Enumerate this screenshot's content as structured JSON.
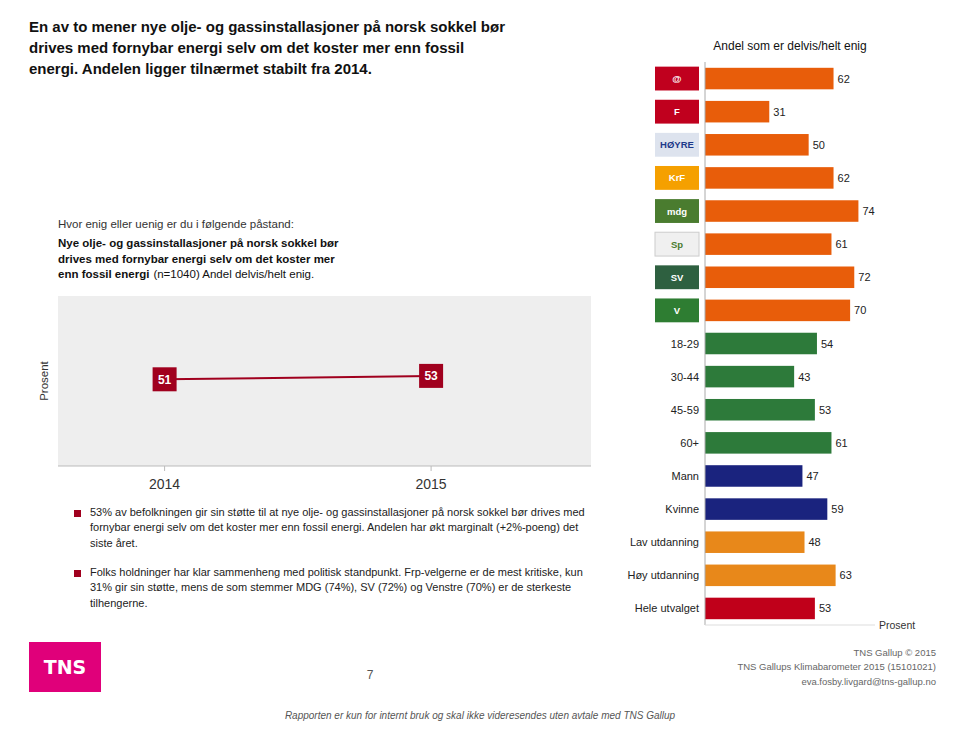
{
  "title": "En av to mener nye olje- og gassinstallasjoner på norsk sokkel bør\ndrives med fornybar energi selv om det koster mer enn fossil\nenergi. Andelen ligger tilnærmet stabilt fra 2014.",
  "notes": [
    "53% av befolkningen gir sin støtte til at nye olje- og gassinstallasjoner på norsk sokkel bør drives med fornybar energi selv om det koster mer enn fossil energi. Andelen har økt marginalt (+2%-poeng) det siste året.",
    "Folks holdninger har klar sammenheng med politisk standpunkt. Frp-velgerne er de mest kritiske, kun 31% gir sin støtte, mens de som stemmer MDG (74%), SV (72%) og Venstre (70%) er de sterkeste tilhengerne."
  ],
  "logo": "TNS",
  "page_number": "7",
  "credit": "TNS Gallup © 2015\nTNS Gallups Klimabarometer 2015 (15101021)\neva.fosby.livgard@tns-gallup.no",
  "footer": "Rapporten er kun for internt bruk og skal ikke videresendes uten avtale med TNS Gallup",
  "chart_data": [
    {
      "type": "line",
      "title": "Hvor enig eller uenig er du i følgende påstand:",
      "subtitle": "Nye olje- og gassinstallasjoner på norsk sokkel bør\ndrives med fornybar energi selv om det koster mer\nenn fossil energi",
      "annotations": [
        "(n=1040) Andel delvis/helt enig."
      ],
      "ylabel": "Prosent",
      "x": [
        2014,
        2015
      ],
      "values": [
        51,
        53
      ],
      "color": "#a0001e",
      "marker": "square",
      "data_labels": true,
      "xlim": [
        2013.6,
        2015.6
      ],
      "xticks": [
        2014,
        2015
      ],
      "ylim": [
        0,
        100
      ],
      "yticks": [],
      "tick_labels": "x",
      "grid": false
    },
    {
      "type": "bar",
      "orientation": "horizontal",
      "title": "Andel som er delvis/helt enig",
      "xlabel": "Prosent",
      "categories": [
        "@",
        "F",
        "HØYRE",
        "KrF",
        "mdg",
        "Sp",
        "SV",
        "V",
        "18-29",
        "30-44",
        "45-59",
        "60+",
        "Mann",
        "Kvinne",
        "Lav utdanning",
        "Høy utdanning",
        "Hele utvalget"
      ],
      "values": [
        62,
        31,
        50,
        62,
        74,
        61,
        72,
        70,
        54,
        43,
        53,
        61,
        47,
        59,
        48,
        63,
        53
      ],
      "colors": [
        "#e85d0a",
        "#e85d0a",
        "#e85d0a",
        "#e85d0a",
        "#e85d0a",
        "#e85d0a",
        "#e85d0a",
        "#e85d0a",
        "#2d7a3a",
        "#2d7a3a",
        "#2d7a3a",
        "#2d7a3a",
        "#1a237e",
        "#1a237e",
        "#e8881a",
        "#e8881a",
        "#c0001a"
      ],
      "xlim": [
        0,
        82
      ],
      "data_labels": true,
      "tick_labels": "y",
      "grid": false
    }
  ]
}
